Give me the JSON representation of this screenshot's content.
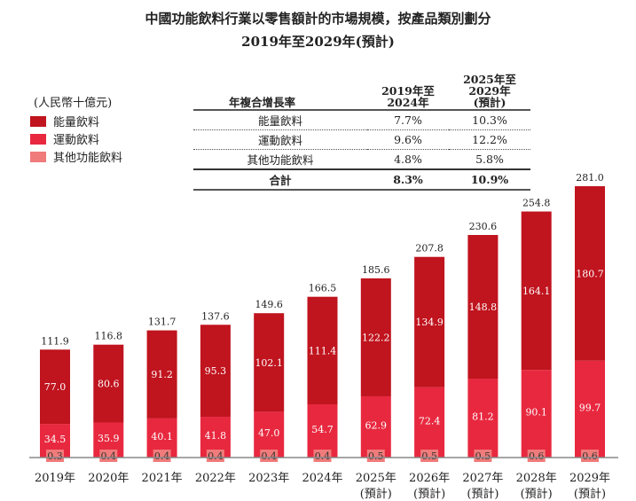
{
  "title_line1": "中國功能飲料行業以零售額計的市場規模，按產品類別劃分",
  "title_line2": "2019年至2029年(預計)",
  "unit": "(人民幣十億元)",
  "colors": {
    "energy": "#C0141E",
    "sports": "#E8283F",
    "other": "#F07B7B"
  },
  "cagr_table": {
    "header": [
      "年複合增長率",
      "2019年至\n2024年",
      "2025年至\n2029年\n(預計)"
    ],
    "rows": [
      [
        "能量飲料",
        "7.7%",
        "10.3%"
      ],
      [
        "運動飲料",
        "9.6%",
        "12.2%"
      ],
      [
        "其他功能飲料",
        "4.8%",
        "5.8%"
      ]
    ],
    "total": [
      "合計",
      "8.3%",
      "10.9%"
    ]
  },
  "chart_data": {
    "type": "bar",
    "stacked": true,
    "title": "中國功能飲料行業以零售額計的市場規模，按產品類別劃分 2019年至2029年(預計)",
    "ylabel": "人民幣十億元",
    "ylim": [
      0,
      281
    ],
    "categories": [
      "2019年",
      "2020年",
      "2021年",
      "2022年",
      "2023年",
      "2024年",
      "2025年",
      "2026年",
      "2027年",
      "2028年",
      "2029年"
    ],
    "sublabels": [
      "",
      "",
      "",
      "",
      "",
      "",
      "(預計)",
      "(預計)",
      "(預計)",
      "(預計)",
      "(預計)"
    ],
    "series": [
      {
        "name": "其他功能飲料",
        "key": "other",
        "values": [
          0.3,
          0.4,
          0.4,
          0.4,
          0.4,
          0.4,
          0.5,
          0.5,
          0.5,
          0.6,
          0.6
        ]
      },
      {
        "name": "運動飲料",
        "key": "sports",
        "values": [
          34.5,
          35.9,
          40.1,
          41.8,
          47.0,
          54.7,
          62.9,
          72.4,
          81.2,
          90.1,
          99.7
        ]
      },
      {
        "name": "能量飲料",
        "key": "energy",
        "values": [
          77.0,
          80.6,
          91.2,
          95.3,
          102.1,
          111.4,
          122.2,
          134.9,
          148.8,
          164.1,
          180.7
        ]
      }
    ],
    "totals": [
      111.9,
      116.8,
      131.7,
      137.6,
      149.6,
      166.5,
      185.6,
      207.8,
      230.6,
      254.8,
      281.0
    ],
    "legend": [
      "能量飲料",
      "運動飲料",
      "其他功能飲料"
    ],
    "legend_position": "top-left"
  }
}
